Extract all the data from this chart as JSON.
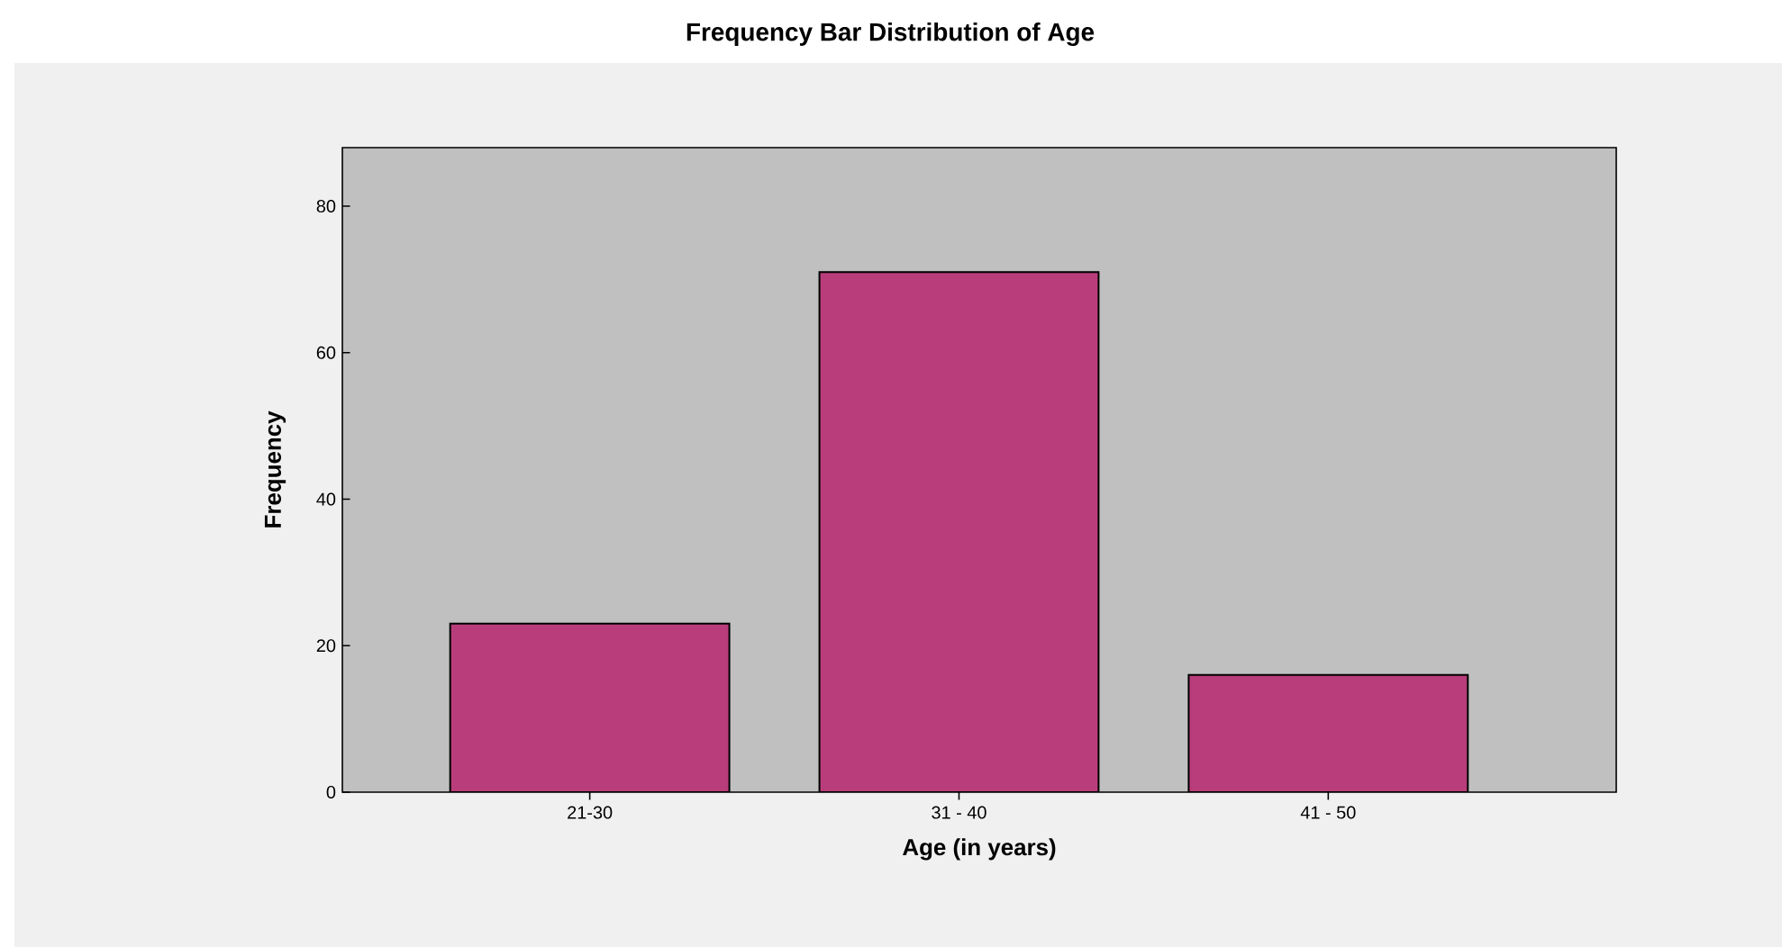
{
  "chart_data": {
    "type": "bar",
    "title": "Frequency Bar Distribution of Age",
    "xlabel": "Age (in years)",
    "ylabel": "Frequency",
    "categories": [
      "21-30",
      "31 - 40",
      "41 - 50"
    ],
    "values": [
      23,
      71,
      16
    ],
    "color": "#b93d7b",
    "ylim": [
      0,
      88
    ],
    "yticks": [
      0,
      20,
      40,
      60,
      80
    ]
  }
}
